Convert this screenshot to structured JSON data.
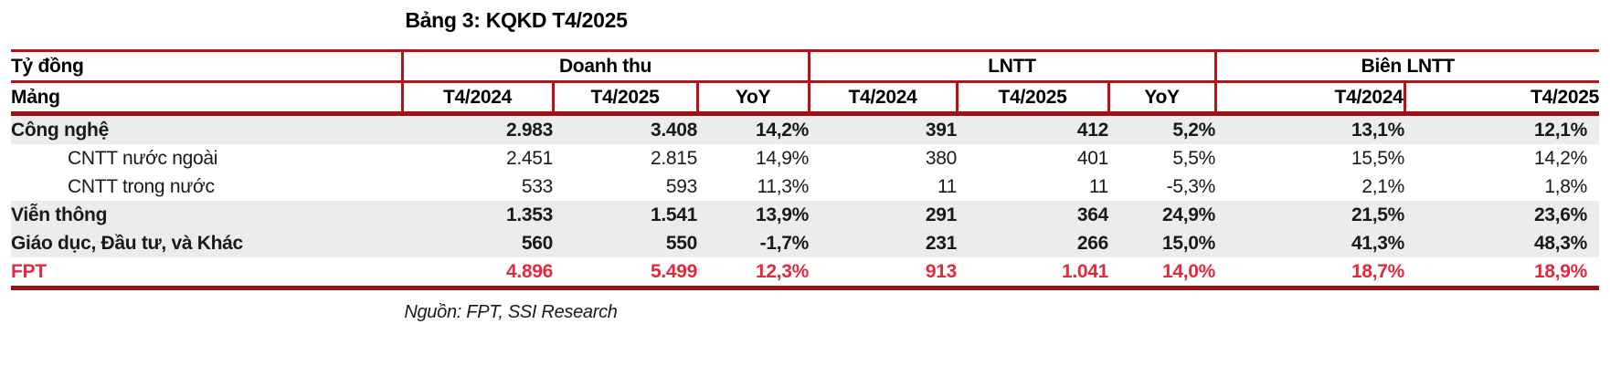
{
  "title": "Bảng 3: KQKD T4/2025",
  "table": {
    "unit_label": "Tỷ đồng",
    "row_header_label": "Mảng",
    "groups": [
      {
        "label": "Doanh thu",
        "columns": [
          "T4/2024",
          "T4/2025",
          "YoY"
        ]
      },
      {
        "label": "LNTT",
        "columns": [
          "T4/2024",
          "T4/2025",
          "YoY"
        ]
      },
      {
        "label": "Biên LNTT",
        "columns": [
          "T4/2024",
          "T4/2025"
        ]
      }
    ],
    "rows": [
      {
        "label": "Công nghệ",
        "style": "bold-shaded",
        "values": [
          "2.983",
          "3.408",
          "14,2%",
          "391",
          "412",
          "5,2%",
          "13,1%",
          "12,1%"
        ]
      },
      {
        "label": "CNTT nước ngoài",
        "style": "indent",
        "values": [
          "2.451",
          "2.815",
          "14,9%",
          "380",
          "401",
          "5,5%",
          "15,5%",
          "14,2%"
        ]
      },
      {
        "label": "CNTT trong nước",
        "style": "indent",
        "values": [
          "533",
          "593",
          "11,3%",
          "11",
          "11",
          "-5,3%",
          "2,1%",
          "1,8%"
        ]
      },
      {
        "label": "Viễn thông",
        "style": "bold-shaded",
        "values": [
          "1.353",
          "1.541",
          "13,9%",
          "291",
          "364",
          "24,9%",
          "21,5%",
          "23,6%"
        ]
      },
      {
        "label": "Giáo dục, Đầu tư, và Khác",
        "style": "bold-shaded",
        "values": [
          "560",
          "550",
          "-1,7%",
          "231",
          "266",
          "15,0%",
          "41,3%",
          "48,3%"
        ]
      },
      {
        "label": "FPT",
        "style": "total",
        "values": [
          "4.896",
          "5.499",
          "12,3%",
          "913",
          "1.041",
          "14,0%",
          "18,7%",
          "18,9%"
        ]
      }
    ]
  },
  "footer": {
    "source": "Nguồn: FPT, SSI Research"
  },
  "colors": {
    "border_red": "#b5121b",
    "thick_border_red": "#9c1016",
    "accent_red": "#e22a3e",
    "shaded_row_bg": "#ececec"
  }
}
